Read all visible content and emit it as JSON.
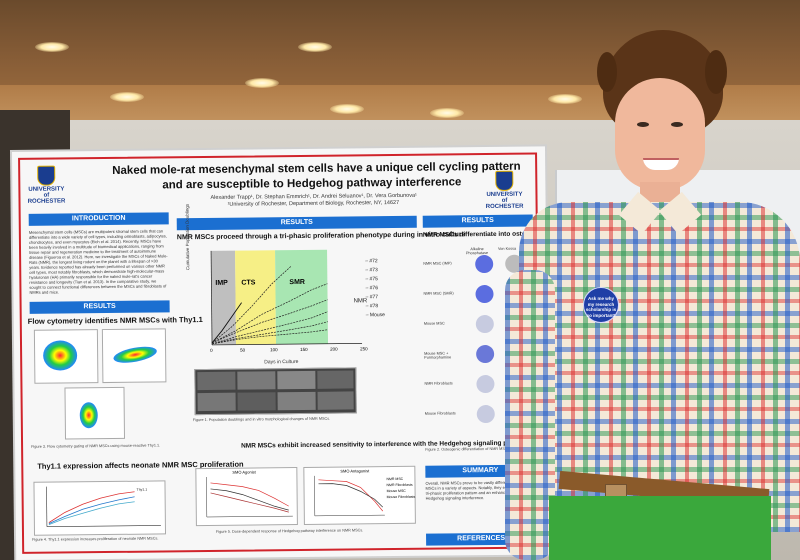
{
  "poster": {
    "title_line1": "Naked mole-rat mesenchymal stem cells have a unique cell cycling pattern",
    "title_line2": "and are susceptible to Hedgehog pathway interference",
    "authors": "Alexander Trapp¹, Dr. Stephan Emmrich¹, Dr. Andrei Seluanov¹, Dr. Vera Gorbunova¹",
    "affiliation": "¹University of Rochester, Department of Biology, Rochester, NY, 14627",
    "logo_text_left": "UNIVERSITY of ROCHESTER",
    "logo_text_right": "UNIVERSITY of ROCHESTER",
    "sections": {
      "introduction": "INTRODUCTION",
      "results_left": "RESULTS",
      "results_center": "RESULTS",
      "results_right": "RESULTS",
      "summary": "SUMMARY",
      "references": "REFERENCES"
    },
    "intro_text": "Mesenchymal stem cells (MSCs) are multipotent stromal stem cells that can differentiate into a wide variety of cell types, including osteoblasts, adipocytes, chondrocytes, and even myocytes (Eich et al. 2014). Recently, MSCs have been heavily involved in a multitude of biomedical applications, ranging from tissue repair and regeneration medicine to the treatment of autoimmune disease (Figueroa et al. 2012). Here, we investigate the MSCs of Naked Mole-Rats (NMR), the longest living rodent on the planet with a lifespan of >30 years. Evidence reported has already been performed on various other NMR cell types, most notably fibroblasts, which demonstrate high-molecular-mass hyaluronan (HA) primarily responsible for the naked mole-rat's cancer resistance and longevity (Tian et al. 2013). In the comparative study, we sought to connect functional differences between the MSCs and fibroblasts of NMRs and mice.",
    "flow_heading": "Flow cytometry identifies NMR MSCs with Thy1.1",
    "thy_heading": "Thy1.1 expression affects neonate NMR MSC proliferation",
    "center_heading": "NMR MSCs proceed through a tri-phasic proliferation phenotype during in vitro culture",
    "hedgehog_heading": "NMR MSCs exhibit increased sensitivity to interference with the Hedgehog signaling pathway",
    "osteo_heading": "NMR MSCs differentiate into osteoblasts in vitro",
    "osteo_col1": "Alkaline Phosphatase",
    "osteo_col2": "Von Kossa",
    "osteo_rows": [
      "NMR MSC (IMP)",
      "NMR MSC (SMR)",
      "Mouse MSC",
      "Mouse MSC + Purmorphamine",
      "NMR Fibroblasts",
      "Mouse Fibroblasts"
    ],
    "fig1_caption": "Figure 1. Population doublings and in vitro morphological changes of NMR MSCs.",
    "fig2_caption": "Figure 2. Osteogenic differentiation of NMR MSCs.",
    "fig3_caption": "Figure 3. Flow cytometry gating of NMR MSCs using mouse-reactive Thy1.1.",
    "fig4_caption": "Figure 4. Thy1.1 expression increases proliferation of neonate NMR MSCs.",
    "fig5_caption": "Figure 5. Dose-dependent response of Hedgehog pathway interference on NMR MSCs.",
    "chart_labels": {
      "ylabel": "Cumulative Population Doublings",
      "xlabel": "Days in Culture",
      "phase_imp": "IMP",
      "phase_cts": "CTS",
      "phase_smr": "SMR",
      "nmr": "NMR",
      "legend": [
        "#72",
        "#73",
        "#75",
        "#76",
        "#77",
        "#78",
        "Mouse"
      ],
      "x_ticks": [
        "0",
        "50",
        "100",
        "150",
        "200",
        "250"
      ],
      "gli_agonist": "SMO Agonist",
      "gli_antagonist": "SMO Antagonist",
      "gli_legend": [
        "NMR MSC",
        "NMR Fibroblasts",
        "Mouse MSC",
        "Mouse Fibroblasts"
      ],
      "conc_label": "Concentration (uM)",
      "days_label": "Days in Culture"
    },
    "summary_text": "Overall, NMR MSCs prove to be vastly different from mouse MSCs in a variety of aspects. Notably, they exhibit a unique tri-phasic proliferation pattern and an enhanced sensitivity to Hedgehog signaling interference."
  },
  "badge": {
    "line1": "Ask me why",
    "line2": "my research",
    "line3": "scholarship is",
    "line4": "so important!"
  },
  "colors": {
    "header_blue": "#1b6fd1",
    "poster_border_red": "#d0242b",
    "phase_imp": "#bfbfbf",
    "phase_cts": "#f6ef86",
    "phase_smr": "#a8e6b2"
  }
}
